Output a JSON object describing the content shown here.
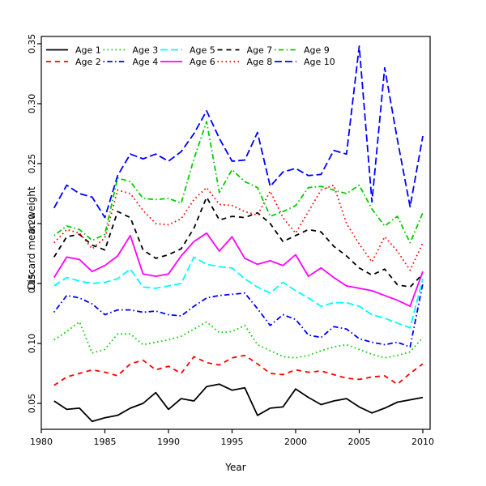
{
  "figure": {
    "xlabel": "Year",
    "ylabel": "Discard mean weight"
  },
  "chart_data": {
    "type": "line",
    "title": "",
    "xlabel": "Year",
    "ylabel": "Discard mean weight",
    "xlim": [
      1980,
      2011
    ],
    "ylim": [
      0.03,
      0.357
    ],
    "grid": false,
    "legend_position": "top-left inside plot, 2 rows x 5 columns",
    "x_ticks": [
      "1980",
      "1985",
      "1990",
      "1995",
      "2000",
      "2005",
      "2010"
    ],
    "y_ticks": [
      "0.05",
      "0.10",
      "0.15",
      "0.20",
      "0.25",
      "0.30",
      "0.35"
    ],
    "x": [
      1981,
      1982,
      1983,
      1984,
      1985,
      1986,
      1987,
      1988,
      1989,
      1990,
      1991,
      1992,
      1993,
      1994,
      1995,
      1996,
      1997,
      1998,
      1999,
      2000,
      2001,
      2002,
      2003,
      2004,
      2005,
      2006,
      2007,
      2008,
      2009,
      2010
    ],
    "series": [
      {
        "name": "Age 1",
        "color": "#000000",
        "linestyle": "solid",
        "values": [
          0.052,
          0.045,
          0.046,
          0.035,
          0.038,
          0.04,
          0.046,
          0.05,
          0.059,
          0.045,
          0.054,
          0.052,
          0.064,
          0.066,
          0.061,
          0.063,
          0.04,
          0.046,
          0.047,
          0.062,
          0.055,
          0.049,
          0.052,
          0.054,
          0.047,
          0.042,
          0.046,
          0.051,
          0.053,
          0.055
        ]
      },
      {
        "name": "Age 2",
        "color": "#ff0000",
        "linestyle": "dashed",
        "values": [
          0.065,
          0.072,
          0.075,
          0.078,
          0.076,
          0.073,
          0.083,
          0.086,
          0.078,
          0.081,
          0.075,
          0.089,
          0.084,
          0.082,
          0.088,
          0.09,
          0.083,
          0.075,
          0.074,
          0.078,
          0.076,
          0.077,
          0.074,
          0.071,
          0.07,
          0.072,
          0.073,
          0.066,
          0.075,
          0.083
        ]
      },
      {
        "name": "Age 3",
        "color": "#00cd00",
        "linestyle": "dotted",
        "values": [
          0.103,
          0.11,
          0.118,
          0.092,
          0.095,
          0.108,
          0.108,
          0.099,
          0.101,
          0.103,
          0.106,
          0.112,
          0.118,
          0.109,
          0.11,
          0.115,
          0.099,
          0.094,
          0.089,
          0.088,
          0.09,
          0.094,
          0.097,
          0.099,
          0.095,
          0.091,
          0.088,
          0.09,
          0.093,
          0.105
        ]
      },
      {
        "name": "Age 4",
        "color": "#0000ff",
        "linestyle": "dotdash",
        "values": [
          0.126,
          0.14,
          0.138,
          0.133,
          0.124,
          0.128,
          0.128,
          0.126,
          0.127,
          0.124,
          0.123,
          0.131,
          0.138,
          0.14,
          0.141,
          0.142,
          0.129,
          0.115,
          0.124,
          0.12,
          0.107,
          0.105,
          0.114,
          0.112,
          0.104,
          0.101,
          0.099,
          0.101,
          0.097,
          0.15
        ]
      },
      {
        "name": "Age 5",
        "color": "#00ffff",
        "linestyle": "longdash",
        "values": [
          0.148,
          0.155,
          0.152,
          0.15,
          0.151,
          0.154,
          0.162,
          0.147,
          0.146,
          0.148,
          0.15,
          0.172,
          0.166,
          0.164,
          0.163,
          0.154,
          0.147,
          0.142,
          0.151,
          0.144,
          0.138,
          0.131,
          0.134,
          0.134,
          0.131,
          0.124,
          0.121,
          0.117,
          0.113,
          0.154
        ]
      },
      {
        "name": "Age 6",
        "color": "#ff00ff",
        "linestyle": "solid",
        "values": [
          0.155,
          0.172,
          0.17,
          0.16,
          0.165,
          0.173,
          0.19,
          0.158,
          0.156,
          0.158,
          0.173,
          0.185,
          0.192,
          0.177,
          0.189,
          0.171,
          0.166,
          0.169,
          0.165,
          0.174,
          0.156,
          0.163,
          0.155,
          0.148,
          0.146,
          0.144,
          0.14,
          0.136,
          0.131,
          0.16
        ]
      },
      {
        "name": "Age 7",
        "color": "#000000",
        "linestyle": "dashed",
        "values": [
          0.172,
          0.189,
          0.191,
          0.182,
          0.178,
          0.21,
          0.205,
          0.178,
          0.171,
          0.174,
          0.179,
          0.196,
          0.222,
          0.203,
          0.206,
          0.205,
          0.209,
          0.2,
          0.185,
          0.19,
          0.195,
          0.193,
          0.181,
          0.173,
          0.163,
          0.157,
          0.162,
          0.149,
          0.147,
          0.158
        ]
      },
      {
        "name": "Age 8",
        "color": "#ff0000",
        "linestyle": "dotted",
        "values": [
          0.184,
          0.195,
          0.192,
          0.179,
          0.188,
          0.228,
          0.225,
          0.211,
          0.2,
          0.199,
          0.204,
          0.22,
          0.23,
          0.216,
          0.215,
          0.21,
          0.207,
          0.227,
          0.205,
          0.192,
          0.21,
          0.228,
          0.232,
          0.2,
          0.183,
          0.168,
          0.189,
          0.177,
          0.161,
          0.184
        ]
      },
      {
        "name": "Age 9",
        "color": "#00cd00",
        "linestyle": "dotdash",
        "values": [
          0.19,
          0.198,
          0.195,
          0.186,
          0.191,
          0.238,
          0.235,
          0.221,
          0.22,
          0.221,
          0.217,
          0.254,
          0.285,
          0.226,
          0.245,
          0.235,
          0.23,
          0.206,
          0.21,
          0.215,
          0.23,
          0.231,
          0.228,
          0.225,
          0.232,
          0.212,
          0.198,
          0.206,
          0.184,
          0.209
        ]
      },
      {
        "name": "Age 10",
        "color": "#0000ff",
        "linestyle": "longdash",
        "values": [
          0.213,
          0.232,
          0.225,
          0.222,
          0.205,
          0.24,
          0.258,
          0.254,
          0.258,
          0.252,
          0.26,
          0.275,
          0.294,
          0.271,
          0.252,
          0.253,
          0.276,
          0.231,
          0.243,
          0.246,
          0.24,
          0.241,
          0.261,
          0.258,
          0.348,
          0.218,
          0.33,
          0.27,
          0.214,
          0.273
        ]
      }
    ]
  }
}
